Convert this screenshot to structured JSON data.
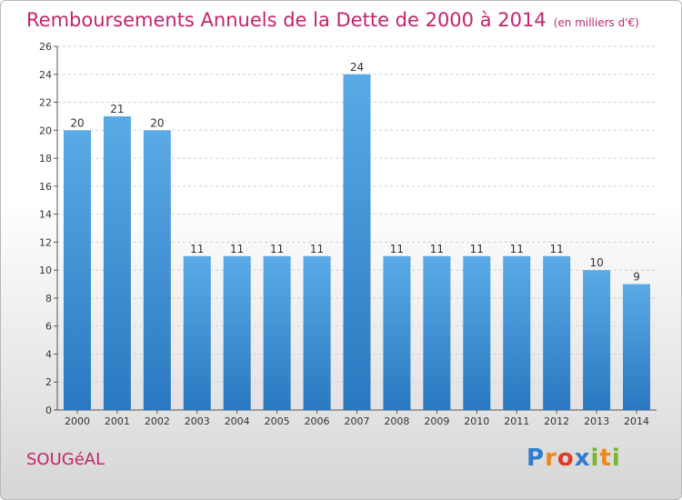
{
  "header": {
    "title": "Remboursements Annuels de la Dette de 2000 à 2014",
    "subtitle": "(en milliers d'€)"
  },
  "footer": {
    "town": "SOUGéAL",
    "logo": "Proxiti"
  },
  "colors": {
    "title": "#c4246c",
    "bar_top": "#5aaae6",
    "bar_bottom": "#2a78c0"
  },
  "chart_data": {
    "type": "bar",
    "title": "Remboursements Annuels de la Dette de 2000 à 2014",
    "subtitle": "(en milliers d'€)",
    "categories": [
      "2000",
      "2001",
      "2002",
      "2003",
      "2004",
      "2005",
      "2006",
      "2007",
      "2008",
      "2009",
      "2010",
      "2011",
      "2012",
      "2013",
      "2014"
    ],
    "values": [
      20,
      21,
      20,
      11,
      11,
      11,
      11,
      24,
      11,
      11,
      11,
      11,
      11,
      10,
      9
    ],
    "ylim": [
      0,
      26
    ],
    "yticks": [
      0,
      2,
      4,
      6,
      8,
      10,
      12,
      14,
      16,
      18,
      20,
      22,
      24,
      26
    ],
    "grid": true,
    "xlabel": "",
    "ylabel": ""
  }
}
